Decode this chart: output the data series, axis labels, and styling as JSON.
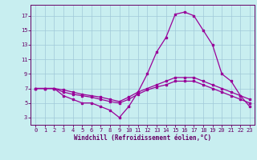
{
  "xlabel": "Windchill (Refroidissement éolien,°C)",
  "bg_color": "#c8eef0",
  "plot_bg_color": "#c8eef0",
  "line_color": "#990099",
  "grid_color": "#a0c8d8",
  "axis_label_color": "#660066",
  "tick_color": "#660066",
  "hours": [
    0,
    1,
    2,
    3,
    4,
    5,
    6,
    7,
    8,
    9,
    10,
    11,
    12,
    13,
    14,
    15,
    16,
    17,
    18,
    19,
    20,
    21,
    22,
    23
  ],
  "temp": [
    7,
    7,
    7,
    6,
    5.5,
    5,
    5,
    4.5,
    4,
    3,
    4.5,
    6.5,
    9,
    12,
    14,
    17.2,
    17.5,
    17,
    15,
    13,
    9,
    8,
    6,
    4.5
  ],
  "line2": [
    7,
    7,
    7,
    6.5,
    6.2,
    6,
    5.8,
    5.5,
    5.2,
    5,
    5.5,
    6.2,
    6.8,
    7.2,
    7.5,
    8,
    8,
    8,
    7.5,
    7,
    6.5,
    6,
    5.5,
    5
  ],
  "line3": [
    7,
    7,
    7,
    6.8,
    6.5,
    6.2,
    6,
    5.8,
    5.5,
    5.2,
    5.8,
    6.5,
    7,
    7.5,
    8,
    8.5,
    8.5,
    8.5,
    8,
    7.5,
    7,
    6.5,
    6,
    5.5
  ],
  "ylim": [
    2,
    18.5
  ],
  "yticks": [
    3,
    5,
    7,
    9,
    11,
    13,
    15,
    17
  ],
  "xlim": [
    -0.5,
    23.5
  ],
  "xticks": [
    0,
    1,
    2,
    3,
    4,
    5,
    6,
    7,
    8,
    9,
    10,
    11,
    12,
    13,
    14,
    15,
    16,
    17,
    18,
    19,
    20,
    21,
    22,
    23
  ],
  "tick_fontsize": 5.0,
  "xlabel_fontsize": 5.5
}
